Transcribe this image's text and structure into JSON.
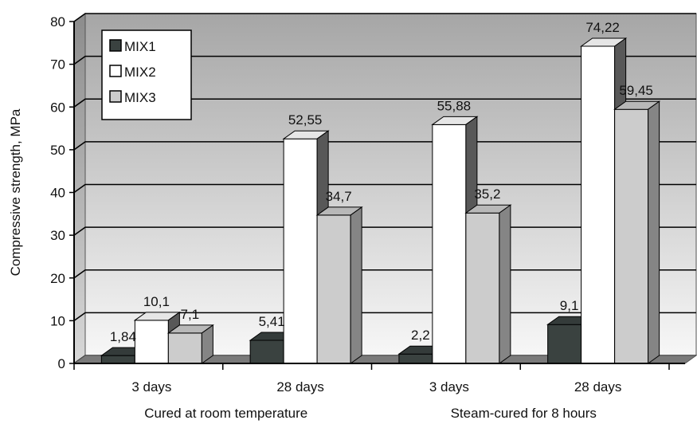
{
  "chart_data": {
    "type": "bar",
    "subtype": "3d-clustered",
    "categories": [
      "3 days",
      "28 days",
      "3 days",
      "28 days"
    ],
    "groups": [
      {
        "label": "Cured at room temperature",
        "categories": [
          "3 days",
          "28 days"
        ]
      },
      {
        "label": "Steam-cured for 8 hours",
        "categories": [
          "3 days",
          "28 days"
        ]
      }
    ],
    "series": [
      {
        "name": "MIX1",
        "values": [
          1.84,
          5.41,
          2.2,
          9.1
        ],
        "labels": [
          "1,84",
          "5,41",
          "2,2",
          "9,1"
        ],
        "color": "#3a4240"
      },
      {
        "name": "MIX2",
        "values": [
          10.1,
          52.55,
          55.88,
          74.22
        ],
        "labels": [
          "10,1",
          "52,55",
          "55,88",
          "74,22"
        ],
        "color": "#ffffff"
      },
      {
        "name": "MIX3",
        "values": [
          7.1,
          34.7,
          35.2,
          59.45
        ],
        "labels": [
          "7,1",
          "34,7",
          "35,2",
          "59,45"
        ],
        "color": "#cccccc"
      }
    ],
    "ylabel": "Compressive strength, MPa",
    "xlabel": "",
    "ylim": [
      0,
      80
    ],
    "yticks": [
      "0",
      "10",
      "20",
      "30",
      "40",
      "50",
      "60",
      "70",
      "80"
    ],
    "grid": true,
    "legend_position": "top-left"
  }
}
